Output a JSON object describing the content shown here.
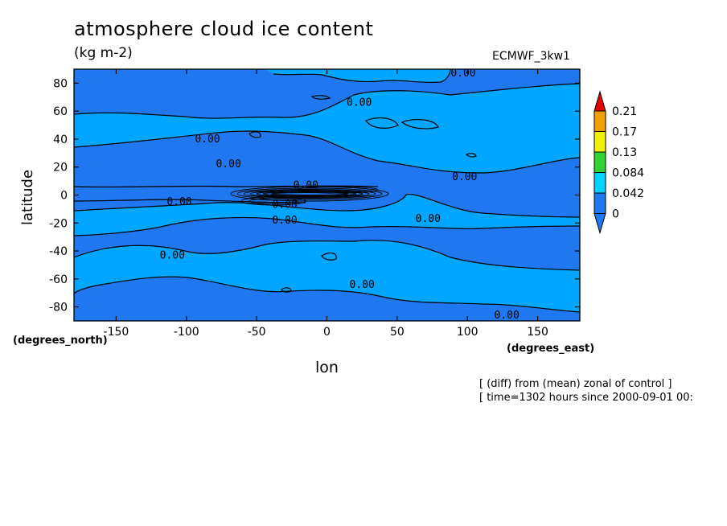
{
  "chart_data": {
    "type": "heatmap",
    "title": "atmosphere cloud ice content",
    "units": "(kg m-2)",
    "model_label": "ECMWF_3kw1",
    "xlabel": "lon",
    "ylabel": "latitude",
    "x_units": "(degrees_east)",
    "y_units": "(degrees_north)",
    "xlim": [
      -180,
      180
    ],
    "ylim": [
      -90,
      90
    ],
    "x_ticks": [
      -150,
      -100,
      -50,
      0,
      50,
      100,
      150
    ],
    "y_ticks": [
      -80,
      -60,
      -40,
      -20,
      0,
      20,
      40,
      60,
      80
    ],
    "x_tick_labels": [
      "-150",
      "-100",
      "-50",
      "0",
      "50",
      "100",
      "150"
    ],
    "y_tick_labels": [
      "-80",
      "-60",
      "-40",
      "-20",
      "0",
      "20",
      "40",
      "60",
      "80"
    ],
    "colorbar": {
      "levels": [
        0,
        0.042,
        0.084,
        0.13,
        0.17,
        0.21
      ],
      "labels": [
        "0",
        "0.042",
        "0.084",
        "0.13",
        "0.17",
        "0.21"
      ],
      "colors": [
        "#1e78f0",
        "#00d2ff",
        "#32d232",
        "#f0f000",
        "#f0a000",
        "#e60000"
      ],
      "under_color": "#1e78f0",
      "over_color": "#e60000"
    },
    "field_colors": {
      "low": "#1f78f0",
      "high": "#00a6ff"
    },
    "contour_labels": [
      {
        "text": "0.00",
        "lon": 97,
        "lat": 87
      },
      {
        "text": "0.00",
        "lon": 23,
        "lat": 66
      },
      {
        "text": "0.00",
        "lon": -85,
        "lat": 40
      },
      {
        "text": "0.00",
        "lon": -70,
        "lat": 22
      },
      {
        "text": "0.00",
        "lon": -15,
        "lat": 7
      },
      {
        "text": "0.00",
        "lon": -105,
        "lat": -5
      },
      {
        "text": "0.00",
        "lon": -30,
        "lat": -7
      },
      {
        "text": "0.00",
        "lon": -30,
        "lat": -18
      },
      {
        "text": "0.00",
        "lon": 98,
        "lat": 13
      },
      {
        "text": "0.00",
        "lon": 72,
        "lat": -17
      },
      {
        "text": "0.00",
        "lon": -110,
        "lat": -43
      },
      {
        "text": "0.00",
        "lon": 25,
        "lat": -64
      },
      {
        "text": "0.00",
        "lon": 128,
        "lat": -86
      }
    ],
    "annotation_line1": "[ (diff) from (mean) zonal of control ]",
    "annotation_line2": "[ time=1302 hours since 2000-09-01 00:"
  }
}
